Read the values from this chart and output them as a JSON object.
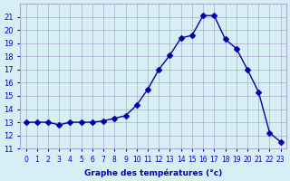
{
  "hours": [
    0,
    1,
    2,
    3,
    4,
    5,
    6,
    7,
    8,
    9,
    10,
    11,
    12,
    13,
    14,
    15,
    16,
    17,
    18,
    19,
    20,
    21,
    22,
    23
  ],
  "temperatures": [
    13,
    13,
    13,
    12.8,
    13,
    13,
    13,
    13.1,
    13.3,
    13.5,
    14.3,
    15.5,
    17.0,
    18.1,
    19.4,
    19.6,
    21.1,
    21.1,
    19.3,
    18.6,
    17.0,
    15.3,
    12.2,
    11.5
  ],
  "line_color": "#0000aa",
  "marker": "D",
  "marker_size": 3,
  "bg_color": "#d7eef5",
  "grid_color": "#aaaacc",
  "xlabel": "Graphe des températures (°c)",
  "xlabel_color": "#0000cc",
  "tick_color": "#0000cc",
  "ylim": [
    11,
    22
  ],
  "yticks": [
    11,
    12,
    13,
    14,
    15,
    16,
    17,
    18,
    19,
    20,
    21
  ],
  "xlim": [
    -0.5,
    23.5
  ],
  "xticks": [
    0,
    1,
    2,
    3,
    4,
    5,
    6,
    7,
    8,
    9,
    10,
    11,
    12,
    13,
    14,
    15,
    16,
    17,
    18,
    19,
    20,
    21,
    22,
    23
  ]
}
